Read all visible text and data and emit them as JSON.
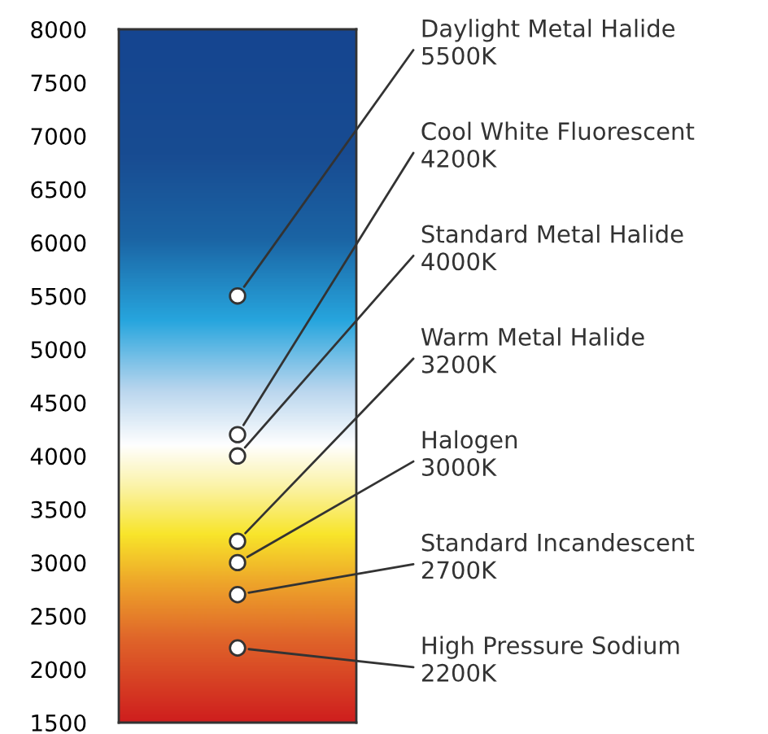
{
  "chart_data": {
    "type": "scatter",
    "categories": [
      null
    ],
    "marker": "circle",
    "ylim": [
      1500,
      8000
    ],
    "yticks": [
      1500,
      2000,
      2500,
      3000,
      3500,
      4000,
      4500,
      5000,
      5500,
      6000,
      6500,
      7000,
      7500,
      8000
    ],
    "tick_labels": "y",
    "grid": false,
    "series": [
      {
        "name": "Daylight Metal Halide",
        "color": "#ffffff",
        "values": [
          5500
        ],
        "value_labels": [
          "5500K"
        ]
      },
      {
        "name": "Cool White Fluorescent",
        "color": "#ffffff",
        "values": [
          4200
        ],
        "value_labels": [
          "4200K"
        ]
      },
      {
        "name": "Standard Metal Halide",
        "color": "#ffffff",
        "values": [
          4000
        ],
        "value_labels": [
          "4000K"
        ]
      },
      {
        "name": "Warm Metal Halide",
        "color": "#ffffff",
        "values": [
          3200
        ],
        "value_labels": [
          "3200K"
        ]
      },
      {
        "name": "Halogen",
        "color": "#ffffff",
        "values": [
          3000
        ],
        "value_labels": [
          "3000K"
        ]
      },
      {
        "name": "Standard Incandescent",
        "color": "#ffffff",
        "values": [
          2700
        ],
        "value_labels": [
          "2700K"
        ]
      },
      {
        "name": "High Pressure Sodium",
        "color": "#ffffff",
        "values": [
          2200
        ],
        "value_labels": [
          "2200K"
        ]
      }
    ]
  }
}
